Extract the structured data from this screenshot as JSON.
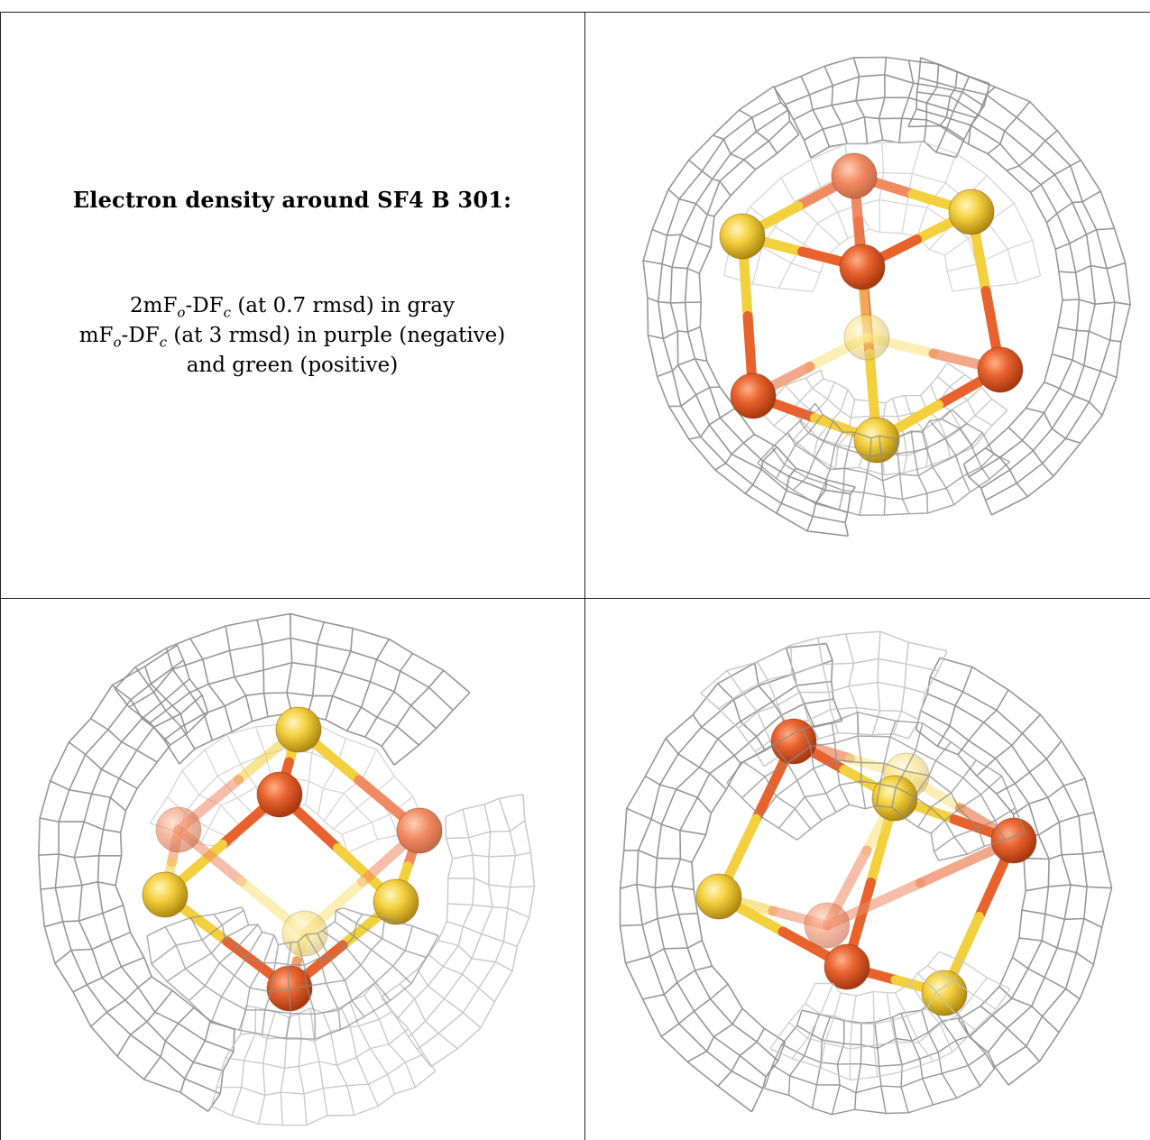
{
  "caption": {
    "title": "Electron density around SF4 B 301:",
    "line1": {
      "a": "2mF",
      "sub1": "o",
      "b": "-DF",
      "sub2": "c",
      "c": " (at 0.7 rmsd) in gray"
    },
    "line2": {
      "a": "mF",
      "sub1": "o",
      "b": "-DF",
      "sub2": "c",
      "c": " (at 3 rmsd) in purple (negative)"
    },
    "line3": "and green (positive)"
  },
  "colors": {
    "iron": "#e8622e",
    "iron_light": "#f08a62",
    "sulfur": "#f3d03e",
    "sulfur_light": "#f8e27a",
    "mesh": "#8c8c8c",
    "mesh_light": "#c4c4c4",
    "grid": "#222222"
  },
  "panels": [
    {
      "name": "top-right",
      "atom_icon": "fe4s4-cluster-icon"
    },
    {
      "name": "bottom-left",
      "atom_icon": "fe4s4-cluster-icon"
    },
    {
      "name": "bottom-right",
      "atom_icon": "fe4s4-cluster-icon"
    }
  ]
}
